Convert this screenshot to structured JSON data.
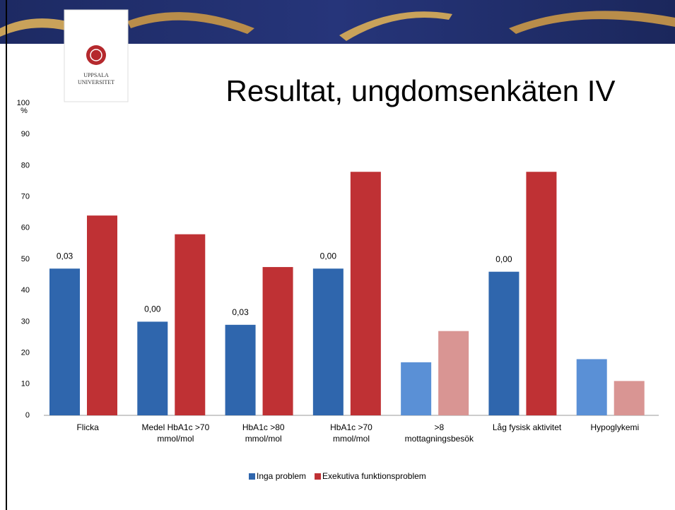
{
  "chart_data": {
    "type": "bar",
    "title": "Resultat, ungdomsenkäten IV",
    "logo_text": "UPPSALA UNIVERSITET",
    "y_label": "%",
    "categories": [
      "Flicka",
      "Medel HbA1c >70\nmmol/mol",
      "HbA1c >80\nmmol/mol",
      "HbA1c >70\nmmol/mol",
      ">8\nmottagningsbesök",
      "Låg fysisk aktivitet",
      "Hypoglykemi"
    ],
    "series": [
      {
        "name": "Inga problem",
        "color": "#2f66ad",
        "colors": [
          "#2f66ad",
          "#2f66ad",
          "#2f66ad",
          "#2f66ad",
          "#5a90d6",
          "#2f66ad",
          "#5a90d6"
        ],
        "values": [
          47,
          30,
          29,
          47,
          17,
          46,
          18
        ],
        "annotations": [
          "0,03",
          "0,00",
          "0,03",
          "0,00",
          null,
          "0,00",
          null
        ]
      },
      {
        "name": "Exekutiva funktionsproblem",
        "color": "#bf3134",
        "colors": [
          "#bf3134",
          "#bf3134",
          "#bf3134",
          "#bf3134",
          "#d99593",
          "#bf3134",
          "#d99593"
        ],
        "values": [
          64,
          58,
          47.5,
          78,
          27,
          78,
          11
        ]
      }
    ],
    "ylim": [
      0,
      100
    ],
    "yticks": [
      0,
      10,
      20,
      30,
      40,
      50,
      60,
      70,
      80,
      90,
      100
    ],
    "grid": false,
    "legend": "bottom"
  }
}
